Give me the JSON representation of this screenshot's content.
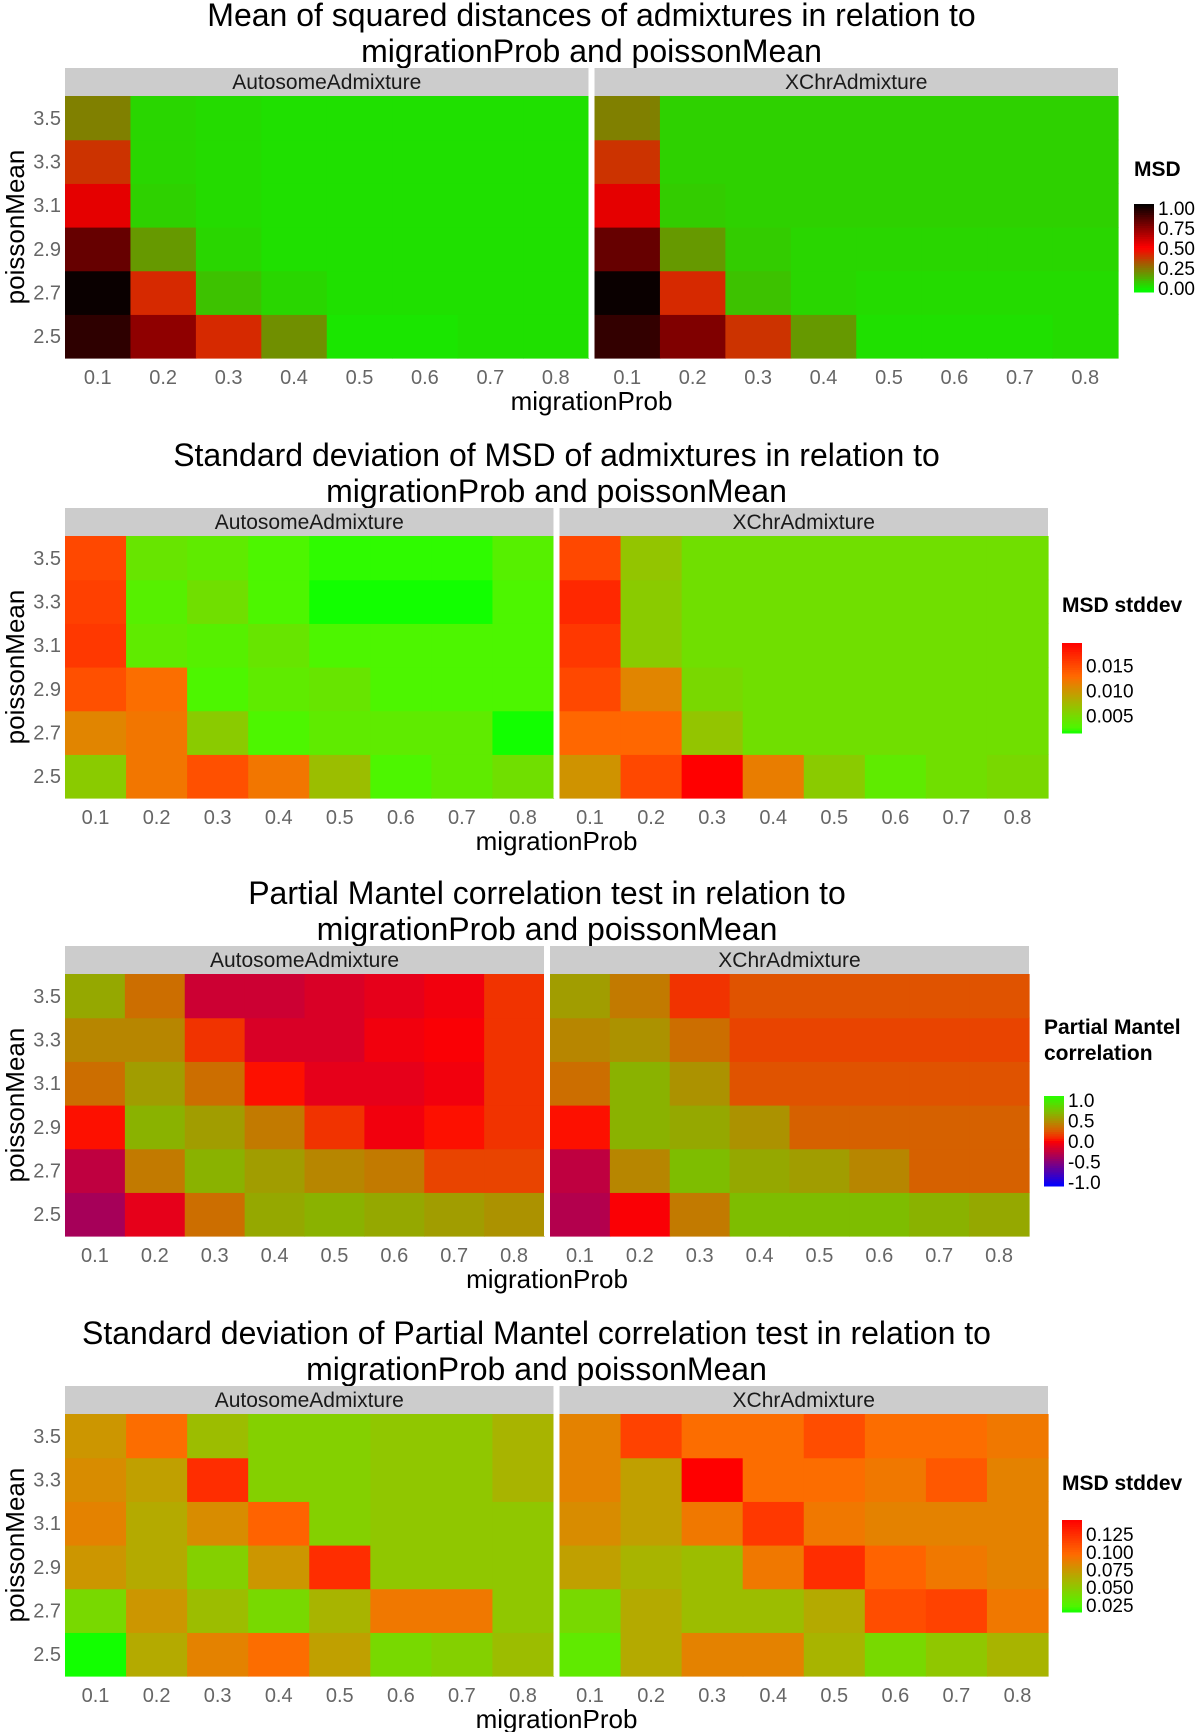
{
  "colors": {
    "gradient_low": "#00ff00",
    "gradient_mid": "#ff0000",
    "gradient_high": "#000000",
    "corr_low": "#0000ff",
    "corr_mid": "#ff0000",
    "corr_high": "#00ff00",
    "strip_bg": "#cccccc",
    "tick_text": "#666666"
  },
  "chart_data": [
    {
      "type": "heatmap",
      "title": [
        "Mean of squared distances of admixtures in relation to",
        "migrationProb and poissonMean"
      ],
      "xlabel": "migrationProb",
      "ylabel": "poissonMean",
      "x": [
        "0.1",
        "0.2",
        "0.3",
        "0.4",
        "0.5",
        "0.6",
        "0.7",
        "0.8"
      ],
      "y": [
        "2.5",
        "2.7",
        "2.9",
        "3.1",
        "3.3",
        "3.5"
      ],
      "legend": {
        "title": [
          "MSD"
        ],
        "labels": [
          "1.00",
          "0.75",
          "0.50",
          "0.25",
          "0.00"
        ],
        "range": [
          0,
          1.0
        ],
        "scale": "msd"
      },
      "panels": [
        {
          "name": "AutosomeAdmixture",
          "values": [
            [
              0.91,
              0.72,
              0.42,
              0.22,
              0.05,
              0.05,
              0.06,
              0.06
            ],
            [
              0.98,
              0.42,
              0.12,
              0.08,
              0.06,
              0.06,
              0.06,
              0.06
            ],
            [
              0.8,
              0.2,
              0.08,
              0.06,
              0.06,
              0.06,
              0.06,
              0.06
            ],
            [
              0.55,
              0.09,
              0.07,
              0.06,
              0.06,
              0.06,
              0.06,
              0.06
            ],
            [
              0.4,
              0.08,
              0.07,
              0.06,
              0.06,
              0.06,
              0.06,
              0.06
            ],
            [
              0.25,
              0.08,
              0.07,
              0.06,
              0.06,
              0.06,
              0.06,
              0.06
            ]
          ]
        },
        {
          "name": "XChrAdmixture",
          "values": [
            [
              0.9,
              0.75,
              0.4,
              0.2,
              0.06,
              0.06,
              0.06,
              0.07
            ],
            [
              0.98,
              0.42,
              0.12,
              0.08,
              0.07,
              0.07,
              0.07,
              0.07
            ],
            [
              0.8,
              0.2,
              0.1,
              0.08,
              0.08,
              0.08,
              0.08,
              0.08
            ],
            [
              0.55,
              0.1,
              0.09,
              0.09,
              0.09,
              0.09,
              0.09,
              0.09
            ],
            [
              0.4,
              0.09,
              0.09,
              0.09,
              0.09,
              0.09,
              0.09,
              0.09
            ],
            [
              0.25,
              0.09,
              0.09,
              0.09,
              0.09,
              0.09,
              0.09,
              0.09
            ]
          ]
        }
      ]
    },
    {
      "type": "heatmap",
      "title": [
        "Standard deviation of MSD of admixtures in relation to",
        "migrationProb and poissonMean"
      ],
      "xlabel": "migrationProb",
      "ylabel": "poissonMean",
      "x": [
        "0.1",
        "0.2",
        "0.3",
        "0.4",
        "0.5",
        "0.6",
        "0.7",
        "0.8"
      ],
      "y": [
        "2.5",
        "2.7",
        "2.9",
        "3.1",
        "3.3",
        "3.5"
      ],
      "legend": {
        "title": [
          "MSD stddev"
        ],
        "labels": [
          "0.015",
          "0.010",
          "0.005"
        ],
        "ticks": [
          0.015,
          0.01,
          0.005
        ],
        "range": [
          0.0015,
          0.0195
        ],
        "scale": "gr"
      },
      "panels": [
        {
          "name": "AutosomeAdmixture",
          "values": [
            [
              0.006,
              0.012,
              0.0145,
              0.012,
              0.007,
              0.0025,
              0.0035,
              0.0045
            ],
            [
              0.011,
              0.012,
              0.006,
              0.0025,
              0.0035,
              0.0035,
              0.0035,
              0.0015
            ],
            [
              0.0145,
              0.0125,
              0.0025,
              0.0035,
              0.004,
              0.0025,
              0.0025,
              0.0025
            ],
            [
              0.016,
              0.0035,
              0.003,
              0.004,
              0.0025,
              0.0025,
              0.0025,
              0.0025
            ],
            [
              0.0155,
              0.003,
              0.0045,
              0.0025,
              0.0015,
              0.0015,
              0.0015,
              0.0025
            ],
            [
              0.015,
              0.004,
              0.0035,
              0.0025,
              0.002,
              0.002,
              0.002,
              0.003
            ]
          ]
        },
        {
          "name": "XChrAdmixture",
          "values": [
            [
              0.01,
              0.015,
              0.0195,
              0.0115,
              0.006,
              0.0035,
              0.0045,
              0.005
            ],
            [
              0.013,
              0.013,
              0.0065,
              0.0045,
              0.0045,
              0.0045,
              0.0045,
              0.0045
            ],
            [
              0.015,
              0.011,
              0.005,
              0.0045,
              0.0045,
              0.0045,
              0.0045,
              0.0045
            ],
            [
              0.016,
              0.006,
              0.0045,
              0.0045,
              0.0045,
              0.0045,
              0.0045,
              0.0045
            ],
            [
              0.017,
              0.006,
              0.0045,
              0.0045,
              0.0045,
              0.0045,
              0.0045,
              0.0045
            ],
            [
              0.015,
              0.0065,
              0.0045,
              0.0045,
              0.0045,
              0.0045,
              0.0045,
              0.0045
            ]
          ]
        }
      ]
    },
    {
      "type": "heatmap",
      "title": [
        "Partial Mantel correlation test in relation to",
        "migrationProb and poissonMean"
      ],
      "xlabel": "migrationProb",
      "ylabel": "poissonMean",
      "x": [
        "0.1",
        "0.2",
        "0.3",
        "0.4",
        "0.5",
        "0.6",
        "0.7",
        "0.8"
      ],
      "y": [
        "2.5",
        "2.7",
        "2.9",
        "3.1",
        "3.3",
        "3.5"
      ],
      "legend": {
        "title": [
          "Partial Mantel",
          "correlation"
        ],
        "labels": [
          "1.0",
          "0.5",
          "0.0",
          "-0.5",
          "-1.0"
        ],
        "range": [
          -1.0,
          1.0
        ],
        "scale": "corr"
      },
      "panels": [
        {
          "name": "AutosomeAdmixture",
          "values": [
            [
              -0.35,
              -0.1,
              0.3,
              0.55,
              0.6,
              0.55,
              0.5,
              0.45
            ],
            [
              -0.25,
              0.35,
              0.6,
              0.5,
              0.4,
              0.35,
              0.15,
              0.15
            ],
            [
              0.02,
              0.6,
              0.5,
              0.35,
              0.1,
              -0.05,
              0.02,
              0.1
            ],
            [
              0.3,
              0.5,
              0.3,
              0.02,
              -0.1,
              -0.1,
              -0.05,
              0.1
            ],
            [
              0.4,
              0.4,
              0.1,
              -0.15,
              -0.15,
              -0.05,
              -0.02,
              0.1
            ],
            [
              0.55,
              0.3,
              -0.2,
              -0.2,
              -0.15,
              -0.1,
              -0.05,
              0.1
            ]
          ]
        },
        {
          "name": "XChrAdmixture",
          "values": [
            [
              -0.3,
              -0.02,
              0.35,
              0.65,
              0.65,
              0.65,
              0.6,
              0.55
            ],
            [
              -0.25,
              0.4,
              0.65,
              0.55,
              0.5,
              0.4,
              0.25,
              0.25
            ],
            [
              0.02,
              0.6,
              0.55,
              0.45,
              0.25,
              0.25,
              0.25,
              0.25
            ],
            [
              0.3,
              0.6,
              0.45,
              0.2,
              0.2,
              0.2,
              0.2,
              0.2
            ],
            [
              0.4,
              0.45,
              0.3,
              0.15,
              0.15,
              0.15,
              0.15,
              0.15
            ],
            [
              0.5,
              0.35,
              0.1,
              0.2,
              0.2,
              0.2,
              0.2,
              0.2
            ]
          ]
        }
      ]
    },
    {
      "type": "heatmap",
      "title": [
        "Standard deviation of Partial Mantel correlation test in relation to",
        "migrationProb and poissonMean"
      ],
      "xlabel": "migrationProb",
      "ylabel": "poissonMean",
      "x": [
        "0.1",
        "0.2",
        "0.3",
        "0.4",
        "0.5",
        "0.6",
        "0.7",
        "0.8"
      ],
      "y": [
        "2.5",
        "2.7",
        "2.9",
        "3.1",
        "3.3",
        "3.5"
      ],
      "legend": {
        "title": [
          "MSD stddev"
        ],
        "labels": [
          "0.125",
          "0.100",
          "0.075",
          "0.050",
          "0.025"
        ],
        "ticks": [
          0.125,
          0.1,
          0.075,
          0.05,
          0.025
        ],
        "range": [
          0.015,
          0.145
        ],
        "scale": "gr"
      },
      "panels": [
        {
          "name": "AutosomeAdmixture",
          "values": [
            [
              0.015,
              0.065,
              0.085,
              0.095,
              0.07,
              0.04,
              0.045,
              0.055
            ],
            [
              0.04,
              0.075,
              0.055,
              0.04,
              0.06,
              0.09,
              0.09,
              0.05
            ],
            [
              0.075,
              0.065,
              0.045,
              0.075,
              0.125,
              0.05,
              0.05,
              0.05
            ],
            [
              0.085,
              0.065,
              0.08,
              0.1,
              0.045,
              0.05,
              0.05,
              0.05
            ],
            [
              0.08,
              0.07,
              0.125,
              0.045,
              0.045,
              0.05,
              0.05,
              0.06
            ],
            [
              0.075,
              0.095,
              0.055,
              0.045,
              0.045,
              0.05,
              0.05,
              0.06
            ]
          ]
        },
        {
          "name": "XChrAdmixture",
          "values": [
            [
              0.03,
              0.065,
              0.085,
              0.085,
              0.06,
              0.04,
              0.05,
              0.06
            ],
            [
              0.04,
              0.065,
              0.055,
              0.055,
              0.065,
              0.11,
              0.115,
              0.09
            ],
            [
              0.07,
              0.06,
              0.055,
              0.09,
              0.125,
              0.1,
              0.09,
              0.085
            ],
            [
              0.08,
              0.07,
              0.09,
              0.12,
              0.09,
              0.085,
              0.085,
              0.085
            ],
            [
              0.085,
              0.07,
              0.145,
              0.095,
              0.095,
              0.09,
              0.105,
              0.085
            ],
            [
              0.085,
              0.115,
              0.095,
              0.095,
              0.11,
              0.095,
              0.095,
              0.09
            ]
          ]
        }
      ]
    }
  ]
}
